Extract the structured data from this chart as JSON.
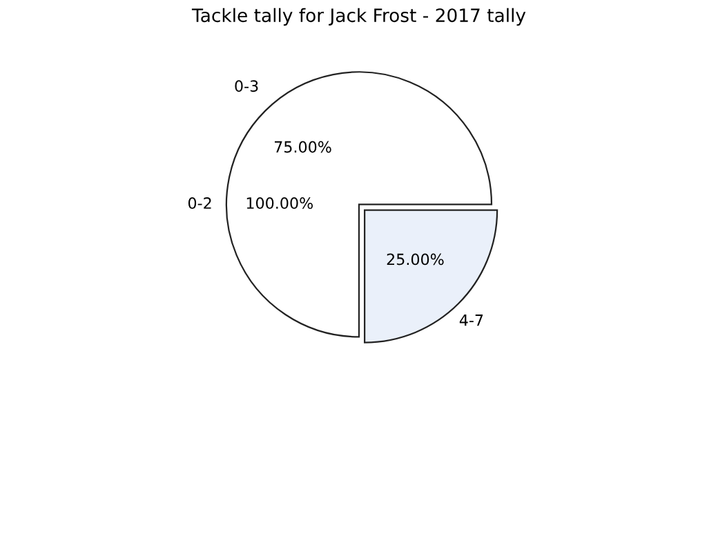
{
  "chart_data": {
    "type": "pie",
    "title": "Tackle tally for Jack Frost - 2017 tally",
    "categories": [
      "0-2",
      "0-3",
      "4-7"
    ],
    "values": [
      0,
      75,
      25
    ],
    "annotations": [
      "100.00%",
      "75.00%",
      "25.00%"
    ],
    "colors": [
      "#ffffff",
      "#ffffff",
      "#eaf0fa"
    ],
    "legend": false
  }
}
